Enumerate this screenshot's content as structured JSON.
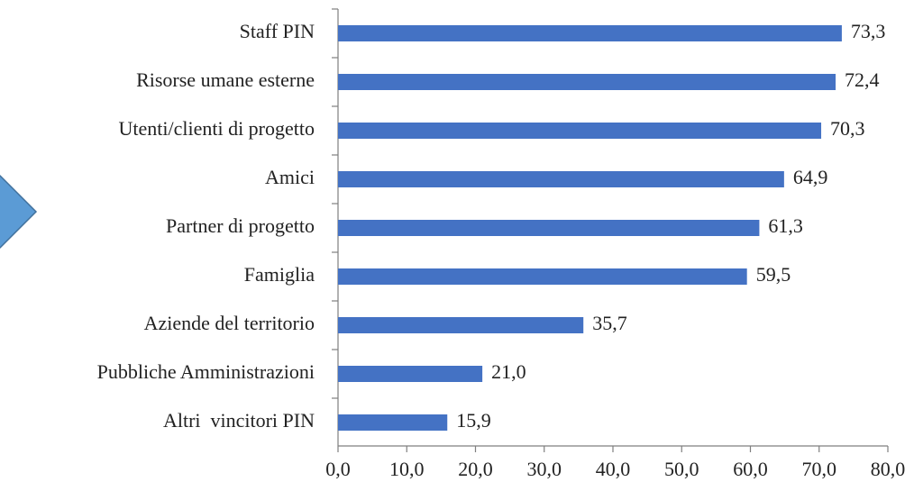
{
  "chart_data": {
    "type": "bar",
    "orientation": "horizontal",
    "categories": [
      "Staff PIN",
      "Risorse umane esterne",
      "Utenti/clienti di progetto",
      "Amici",
      "Partner di progetto",
      "Famiglia",
      "Aziende del territorio",
      "Pubbliche Amministrazioni",
      "Altri  vincitori PIN"
    ],
    "values": [
      73.3,
      72.4,
      70.3,
      64.9,
      61.3,
      59.5,
      35.7,
      21.0,
      15.9
    ],
    "value_labels": [
      "73,3",
      "72,4",
      "70,3",
      "64,9",
      "61,3",
      "59,5",
      "35,7",
      "21,0",
      "15,9"
    ],
    "color": "#4472c4",
    "xlim": [
      0,
      80
    ],
    "xticks": [
      {
        "value": 0,
        "label": "0,0"
      },
      {
        "value": 10,
        "label": "10,0"
      },
      {
        "value": 20,
        "label": "20,0"
      },
      {
        "value": 30,
        "label": "30,0"
      },
      {
        "value": 40,
        "label": "40,0"
      },
      {
        "value": 50,
        "label": "50,0"
      },
      {
        "value": 60,
        "label": "60,0"
      },
      {
        "value": 70,
        "label": "70,0"
      },
      {
        "value": 80,
        "label": "80,0"
      }
    ],
    "grid": false
  }
}
